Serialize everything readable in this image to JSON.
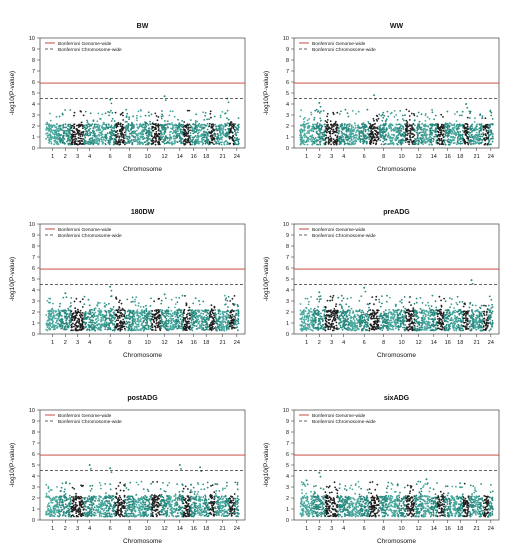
{
  "legend": {
    "genome_label": "Bonferroni Genome-wide",
    "chromosome_label": "Bonferroni Chromosome-wide"
  },
  "colors": {
    "genome_line": "#c0392b",
    "chromosome_line": "#333333",
    "dark_points": "#1f1f1f",
    "teal_points": "#2a8a80",
    "light_teal_points": "#48a89e"
  },
  "chart_data": [
    {
      "type": "scatter",
      "title": "BW",
      "xlabel": "Chromosome",
      "ylabel": "-log10(P-value)",
      "ylim": [
        0,
        10
      ],
      "yticks": [
        0,
        1,
        2,
        3,
        4,
        5,
        6,
        7,
        8,
        9,
        10
      ],
      "xtick_labels": [
        "1",
        "2",
        "3",
        "4",
        "6",
        "8",
        "10",
        "12",
        "14",
        "16",
        "18",
        "21",
        "24"
      ],
      "genome_threshold": 5.9,
      "chromosome_threshold": 4.5,
      "peaks": [
        {
          "chromosome": 12,
          "value": 4.7
        },
        {
          "chromosome": 22,
          "value": 4.5
        },
        {
          "chromosome": 6,
          "value": 4.4
        }
      ]
    },
    {
      "type": "scatter",
      "title": "WW",
      "xlabel": "Chromosome",
      "ylabel": "-log10(P-value)",
      "ylim": [
        0,
        10
      ],
      "yticks": [
        0,
        1,
        2,
        3,
        4,
        5,
        6,
        7,
        8,
        9,
        10
      ],
      "xtick_labels": [
        "1",
        "2",
        "3",
        "4",
        "6",
        "8",
        "10",
        "12",
        "14",
        "16",
        "18",
        "21",
        "24"
      ],
      "genome_threshold": 5.9,
      "chromosome_threshold": 4.5,
      "peaks": [
        {
          "chromosome": 7,
          "value": 4.8
        },
        {
          "chromosome": 2,
          "value": 4.1
        },
        {
          "chromosome": 19,
          "value": 4.0
        }
      ]
    },
    {
      "type": "scatter",
      "title": "180DW",
      "xlabel": "Chromosome",
      "ylabel": "-log10(P-value)",
      "ylim": [
        0,
        10
      ],
      "yticks": [
        0,
        1,
        2,
        3,
        4,
        5,
        6,
        7,
        8,
        9,
        10
      ],
      "xtick_labels": [
        "1",
        "2",
        "3",
        "4",
        "6",
        "8",
        "10",
        "12",
        "14",
        "16",
        "18",
        "21",
        "24"
      ],
      "genome_threshold": 5.9,
      "chromosome_threshold": 4.5,
      "peaks": [
        {
          "chromosome": 6,
          "value": 4.3
        },
        {
          "chromosome": 2,
          "value": 3.7
        },
        {
          "chromosome": 12,
          "value": 3.6
        }
      ]
    },
    {
      "type": "scatter",
      "title": "preADG",
      "xlabel": "Chromosome",
      "ylabel": "-log10(P-value)",
      "ylim": [
        0,
        10
      ],
      "yticks": [
        0,
        1,
        2,
        3,
        4,
        5,
        6,
        7,
        8,
        9,
        10
      ],
      "xtick_labels": [
        "1",
        "2",
        "3",
        "4",
        "6",
        "8",
        "10",
        "12",
        "14",
        "16",
        "18",
        "21",
        "24"
      ],
      "genome_threshold": 5.9,
      "chromosome_threshold": 4.5,
      "peaks": [
        {
          "chromosome": 20,
          "value": 4.9
        },
        {
          "chromosome": 2,
          "value": 3.8
        },
        {
          "chromosome": 6,
          "value": 4.2
        }
      ]
    },
    {
      "type": "scatter",
      "title": "postADG",
      "xlabel": "Chromosome",
      "ylabel": "-log10(P-value)",
      "ylim": [
        0,
        10
      ],
      "yticks": [
        0,
        1,
        2,
        3,
        4,
        5,
        6,
        7,
        8,
        9,
        10
      ],
      "xtick_labels": [
        "1",
        "2",
        "3",
        "4",
        "6",
        "8",
        "10",
        "12",
        "14",
        "16",
        "18",
        "21",
        "24"
      ],
      "genome_threshold": 5.9,
      "chromosome_threshold": 4.5,
      "peaks": [
        {
          "chromosome": 4,
          "value": 5.0
        },
        {
          "chromosome": 14,
          "value": 5.0
        },
        {
          "chromosome": 6,
          "value": 4.7
        },
        {
          "chromosome": 17,
          "value": 4.8
        }
      ]
    },
    {
      "type": "scatter",
      "title": "sixADG",
      "xlabel": "Chromosome",
      "ylabel": "-log10(P-value)",
      "ylim": [
        0,
        10
      ],
      "yticks": [
        0,
        1,
        2,
        3,
        4,
        5,
        6,
        7,
        8,
        9,
        10
      ],
      "xtick_labels": [
        "1",
        "2",
        "3",
        "4",
        "6",
        "8",
        "10",
        "12",
        "14",
        "16",
        "18",
        "21",
        "24"
      ],
      "genome_threshold": 5.9,
      "chromosome_threshold": 4.5,
      "peaks": [
        {
          "chromosome": 2,
          "value": 4.3
        },
        {
          "chromosome": 1,
          "value": 3.6
        },
        {
          "chromosome": 13,
          "value": 3.7
        }
      ]
    }
  ]
}
